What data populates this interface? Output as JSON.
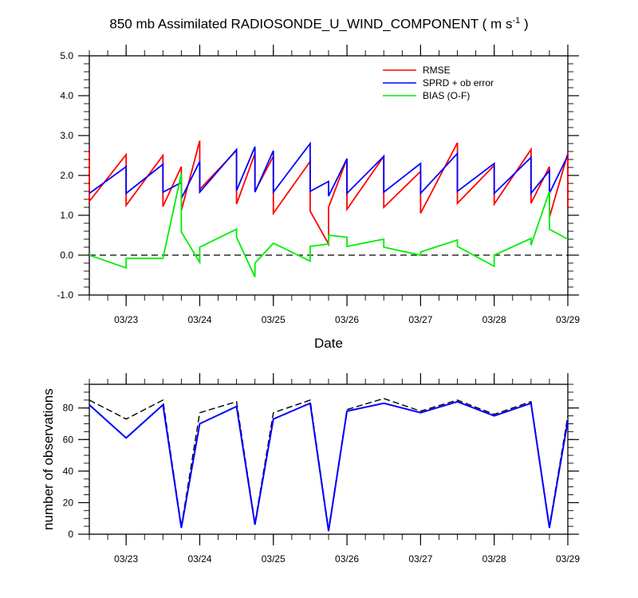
{
  "title_main": "850 mb Assimilated RADIOSONDE_U_WIND_COMPONENT ( m s",
  "title_sup": "-1",
  "title_end": " )",
  "colors": {
    "rmse": "#ff0000",
    "sprd": "#0000ff",
    "bias": "#00ee00",
    "obs_used": "#0000ff",
    "obs_possible": "#000000"
  },
  "chart_data": [
    {
      "type": "line",
      "xlabel": "Date",
      "ylabel": "",
      "x_ticks": [
        "03/23",
        "03/24",
        "03/25",
        "03/26",
        "03/27",
        "03/28",
        "03/29"
      ],
      "ylim": [
        -1.0,
        5.0
      ],
      "y_ticks": [
        "-1.0",
        "0.0",
        "1.0",
        "2.0",
        "3.0",
        "4.0",
        "5.0"
      ],
      "xlim": [
        0,
        6.5
      ],
      "zero_line": "dashed",
      "legend_position": "top-right",
      "series": [
        {
          "name": "RMSE",
          "color": "#ff0000",
          "points": [
            [
              0,
              2.65
            ],
            [
              0,
              1.35
            ],
            [
              0.5,
              2.52
            ],
            [
              0.5,
              1.25
            ],
            [
              1.0,
              2.5
            ],
            [
              1.0,
              1.22
            ],
            [
              1.25,
              2.22
            ],
            [
              1.25,
              1.12
            ],
            [
              1.5,
              2.87
            ],
            [
              1.5,
              1.65
            ],
            [
              2.0,
              2.63
            ],
            [
              2.0,
              1.28
            ],
            [
              2.25,
              2.55
            ],
            [
              2.25,
              1.6
            ],
            [
              2.5,
              2.48
            ],
            [
              2.5,
              1.05
            ],
            [
              3.0,
              2.35
            ],
            [
              3.0,
              1.1
            ],
            [
              3.25,
              0.28
            ],
            [
              3.25,
              1.2
            ],
            [
              3.5,
              2.42
            ],
            [
              3.5,
              1.15
            ],
            [
              4.0,
              2.48
            ],
            [
              4.0,
              1.2
            ],
            [
              4.5,
              2.1
            ],
            [
              4.5,
              1.05
            ],
            [
              5.0,
              2.82
            ],
            [
              5.0,
              1.3
            ],
            [
              5.5,
              2.25
            ],
            [
              5.5,
              1.28
            ],
            [
              6.0,
              2.65
            ],
            [
              6.0,
              1.3
            ],
            [
              6.25,
              2.22
            ],
            [
              6.25,
              0.95
            ],
            [
              6.5,
              2.55
            ],
            [
              6.5,
              1.2
            ]
          ]
        },
        {
          "name": "SPRD + ob error",
          "color": "#0000ff",
          "points": [
            [
              0,
              1.55
            ],
            [
              0.5,
              2.22
            ],
            [
              0.5,
              1.55
            ],
            [
              1.0,
              2.28
            ],
            [
              1.0,
              1.58
            ],
            [
              1.25,
              1.82
            ],
            [
              1.25,
              1.42
            ],
            [
              1.5,
              2.35
            ],
            [
              1.5,
              1.58
            ],
            [
              2.0,
              2.65
            ],
            [
              2.0,
              1.62
            ],
            [
              2.25,
              2.72
            ],
            [
              2.25,
              1.58
            ],
            [
              2.5,
              2.62
            ],
            [
              2.5,
              1.58
            ],
            [
              3.0,
              2.8
            ],
            [
              3.0,
              1.6
            ],
            [
              3.25,
              1.85
            ],
            [
              3.25,
              1.48
            ],
            [
              3.5,
              2.42
            ],
            [
              3.5,
              1.55
            ],
            [
              4.0,
              2.48
            ],
            [
              4.0,
              1.58
            ],
            [
              4.5,
              2.3
            ],
            [
              4.5,
              1.55
            ],
            [
              5.0,
              2.55
            ],
            [
              5.0,
              1.6
            ],
            [
              5.5,
              2.3
            ],
            [
              5.5,
              1.55
            ],
            [
              6.0,
              2.45
            ],
            [
              6.0,
              1.55
            ],
            [
              6.25,
              2.12
            ],
            [
              6.25,
              1.55
            ],
            [
              6.5,
              2.5
            ]
          ]
        },
        {
          "name": "BIAS (O-F)",
          "color": "#00ee00",
          "points": [
            [
              0,
              0.0
            ],
            [
              0.5,
              -0.32
            ],
            [
              0.5,
              -0.08
            ],
            [
              1.0,
              -0.08
            ],
            [
              1.25,
              2.05
            ],
            [
              1.25,
              0.58
            ],
            [
              1.5,
              -0.18
            ],
            [
              1.5,
              0.2
            ],
            [
              2.0,
              0.65
            ],
            [
              2.0,
              0.45
            ],
            [
              2.25,
              -0.55
            ],
            [
              2.25,
              -0.2
            ],
            [
              2.5,
              0.3
            ],
            [
              3.0,
              -0.15
            ],
            [
              3.0,
              0.22
            ],
            [
              3.25,
              0.28
            ],
            [
              3.25,
              0.5
            ],
            [
              3.5,
              0.45
            ],
            [
              3.5,
              0.22
            ],
            [
              4.0,
              0.4
            ],
            [
              4.0,
              0.2
            ],
            [
              4.5,
              0.0
            ],
            [
              4.5,
              0.08
            ],
            [
              5.0,
              0.38
            ],
            [
              5.0,
              0.22
            ],
            [
              5.5,
              -0.28
            ],
            [
              5.5,
              0.0
            ],
            [
              6.0,
              0.42
            ],
            [
              6.0,
              0.25
            ],
            [
              6.25,
              1.6
            ],
            [
              6.25,
              0.65
            ],
            [
              6.5,
              0.4
            ]
          ]
        }
      ]
    },
    {
      "type": "line",
      "xlabel": "",
      "ylabel": "number of observations",
      "x_ticks": [
        "03/23",
        "03/24",
        "03/25",
        "03/26",
        "03/27",
        "03/28",
        "03/29"
      ],
      "ylim": [
        0,
        95
      ],
      "y_ticks": [
        "0",
        "20",
        "40",
        "60",
        "80"
      ],
      "xlim": [
        0,
        6.5
      ],
      "series": [
        {
          "color": "#000000",
          "style": "dashed",
          "x": [
            0,
            0.5,
            1.0,
            1.25,
            1.5,
            2.0,
            2.25,
            2.5,
            3.0,
            3.25,
            3.5,
            4.0,
            4.5,
            5.0,
            5.5,
            6.0,
            6.25,
            6.5
          ],
          "values": [
            85,
            73,
            85,
            5,
            77,
            84,
            7,
            77,
            85,
            3,
            79,
            86,
            78,
            85,
            76,
            84,
            5,
            75
          ]
        },
        {
          "color": "#0000ff",
          "style": "solid",
          "x": [
            0,
            0.5,
            1.0,
            1.25,
            1.5,
            2.0,
            2.25,
            2.5,
            3.0,
            3.25,
            3.5,
            4.0,
            4.5,
            5.0,
            5.5,
            6.0,
            6.25,
            6.5
          ],
          "values": [
            82,
            61,
            82,
            4,
            70,
            81,
            6,
            73,
            83,
            2,
            78,
            83,
            77,
            84,
            75,
            83,
            4,
            72
          ]
        }
      ]
    }
  ]
}
